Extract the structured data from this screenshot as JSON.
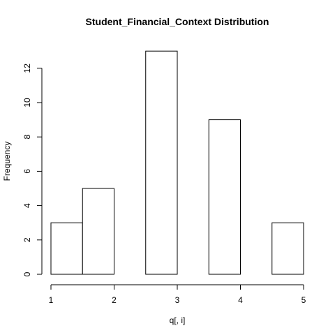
{
  "chart_data": {
    "type": "bar",
    "title": "Student_Financial_Context Distribution",
    "xlabel": "q[, i]",
    "ylabel": "Frequency",
    "bins": [
      {
        "from": 1.0,
        "to": 1.5,
        "count": 3
      },
      {
        "from": 1.5,
        "to": 2.0,
        "count": 5
      },
      {
        "from": 2.0,
        "to": 2.5,
        "count": 0
      },
      {
        "from": 2.5,
        "to": 3.0,
        "count": 13
      },
      {
        "from": 3.0,
        "to": 3.5,
        "count": 0
      },
      {
        "from": 3.5,
        "to": 4.0,
        "count": 9
      },
      {
        "from": 4.0,
        "to": 4.5,
        "count": 0
      },
      {
        "from": 4.5,
        "to": 5.0,
        "count": 3
      }
    ],
    "xlim": [
      1,
      5
    ],
    "ylim": [
      0,
      13
    ],
    "x_ticks": [
      "1",
      "2",
      "3",
      "4",
      "5"
    ],
    "y_ticks": [
      "0",
      "2",
      "4",
      "6",
      "8",
      "10",
      "12"
    ],
    "grid": false,
    "legend": "none",
    "colors": {
      "bar_fill": "#ffffff",
      "bar_stroke": "#000000"
    }
  }
}
